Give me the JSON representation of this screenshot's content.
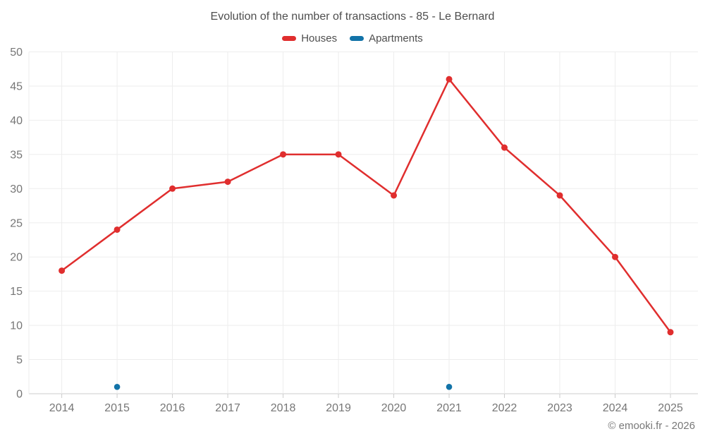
{
  "header": {
    "title": "Evolution of the number of transactions - 85 - Le Bernard"
  },
  "legend": [
    {
      "label": "Houses",
      "color": "#e02e2e"
    },
    {
      "label": "Apartments",
      "color": "#1273a8"
    }
  ],
  "footer": {
    "copyright": "© emooki.fr - 2026"
  },
  "chart_data": {
    "type": "line",
    "title": "Evolution of the number of transactions - 85 - Le Bernard",
    "x": [
      2014,
      2015,
      2016,
      2017,
      2018,
      2019,
      2020,
      2021,
      2022,
      2023,
      2024,
      2025
    ],
    "series": [
      {
        "name": "Houses",
        "color": "#e02e2e",
        "marker_radius": 4.5,
        "line": true,
        "values": [
          18,
          24,
          30,
          31,
          35,
          35,
          29,
          46,
          36,
          29,
          20,
          9
        ]
      },
      {
        "name": "Apartments",
        "color": "#1273a8",
        "marker_radius": 4.3,
        "line": false,
        "values": [
          null,
          1,
          null,
          null,
          null,
          null,
          null,
          1,
          null,
          null,
          null,
          null
        ]
      }
    ],
    "xlabel": "",
    "ylabel": "",
    "ylim": [
      0,
      50
    ],
    "ytick_step": 5,
    "grid": true,
    "legend_position": "top",
    "colors": {
      "grid": "#ededed",
      "axis": "#cccccc",
      "tick_label": "#767676",
      "title_text": "#4e4e4e"
    }
  }
}
